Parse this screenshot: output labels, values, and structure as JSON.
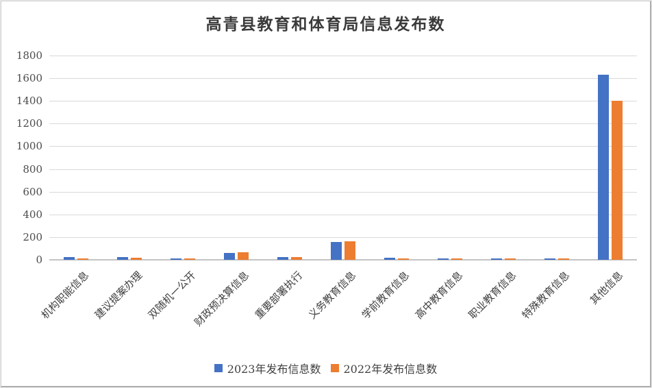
{
  "frame": {
    "background": "#ffffff",
    "border_color": "#cfcfcf"
  },
  "chart_data": {
    "type": "bar",
    "title": "高青县教育和体育局信息发布数",
    "categories": [
      "机构职能信息",
      "建议提案办理",
      "双随机一公开",
      "财政预决算信息",
      "重要部署执行",
      "义务教育信息",
      "学前教育信息",
      "高中教育信息",
      "职业教育信息",
      "特殊教育信息",
      "其他信息"
    ],
    "series": [
      {
        "name": "2023年发布信息数",
        "color": "#4472C4",
        "values": [
          25,
          25,
          15,
          60,
          25,
          160,
          20,
          13,
          13,
          13,
          1630
        ]
      },
      {
        "name": "2022年发布信息数",
        "color": "#ED7D31",
        "values": [
          15,
          20,
          12,
          65,
          22,
          165,
          10,
          13,
          13,
          13,
          1400
        ]
      }
    ],
    "xlabel": "",
    "ylabel": "",
    "ylim": [
      0,
      1800
    ],
    "ytick_step": 200,
    "grid": "horizontal",
    "gridline_color": "#d9d9d9",
    "axis_label_color": "#4a4a4a",
    "legend_position": "bottom"
  }
}
